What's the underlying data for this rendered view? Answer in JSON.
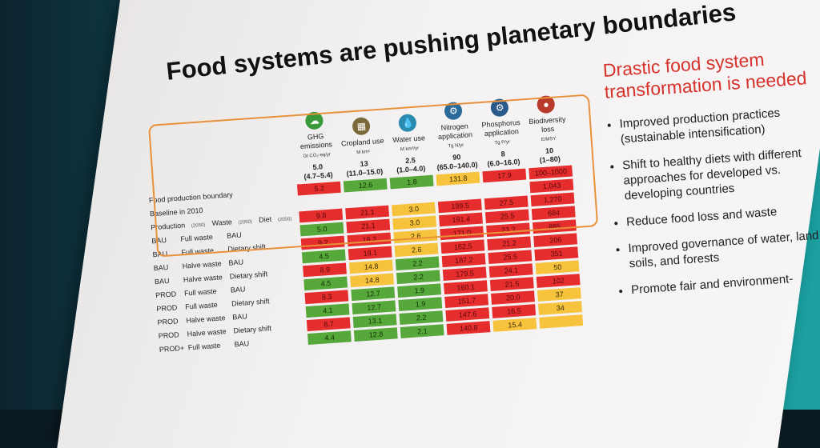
{
  "slide": {
    "title": "Food systems are pushing planetary boundaries",
    "columns": [
      {
        "label": "GHG emissions",
        "unit": "Gt CO₂-eq/yr",
        "boundary": "5.0",
        "range": "(4.7–5.4)",
        "icon": "ghg-icon",
        "color": "#3a9a3a"
      },
      {
        "label": "Cropland use",
        "unit": "M km²",
        "boundary": "13",
        "range": "(11.0–15.0)",
        "icon": "cropland-icon",
        "color": "#7a6a3a"
      },
      {
        "label": "Water use",
        "unit": "M km³/yr",
        "boundary": "2.5",
        "range": "(1.0–4.0)",
        "icon": "water-icon",
        "color": "#2a8ab0"
      },
      {
        "label": "Nitrogen application",
        "unit": "Tg N/yr",
        "boundary": "90",
        "range": "(65.0–140.0)",
        "icon": "nitrogen-icon",
        "color": "#2a6a9a"
      },
      {
        "label": "Phosphorus application",
        "unit": "Tg P/yr",
        "boundary": "8",
        "range": "(6.0–16.0)",
        "icon": "phosphorus-icon",
        "color": "#2a5a8a"
      },
      {
        "label": "Biodiversity loss",
        "unit": "E/MSY",
        "boundary": "10",
        "range": "(1–80)",
        "icon": "biodiversity-icon",
        "color": "#b83a2a"
      }
    ],
    "row_labels": {
      "boundary": "Food production boundary",
      "baseline": "Baseline in 2010",
      "h_production": "Production",
      "h_production_sub": "(2050)",
      "h_waste": "Waste",
      "h_waste_sub": "(2050)",
      "h_diet": "Diet",
      "h_diet_sub": "(2050)"
    },
    "baseline": [
      {
        "v": "5.2",
        "c": "red"
      },
      {
        "v": "12.6",
        "c": "green"
      },
      {
        "v": "1.8",
        "c": "green"
      },
      {
        "v": "131.8",
        "c": "yellow"
      },
      {
        "v": "17.9",
        "c": "red"
      },
      {
        "v": "100–1000",
        "c": "red"
      }
    ],
    "baseline_extra": {
      "v": "1,043",
      "c": "red"
    },
    "rows": [
      {
        "p": "",
        "w": "",
        "d": "",
        "cells": [
          {
            "v": "9.8",
            "c": "red"
          },
          {
            "v": "21.1",
            "c": "red"
          },
          {
            "v": "3.0",
            "c": "yellow"
          },
          {
            "v": "199.5",
            "c": "red"
          },
          {
            "v": "27.5",
            "c": "red"
          },
          {
            "v": "1,270",
            "c": "red"
          }
        ]
      },
      {
        "p": "BAU",
        "w": "Full waste",
        "d": "BAU",
        "cells": [
          {
            "v": "5.0",
            "c": "green"
          },
          {
            "v": "21.1",
            "c": "red"
          },
          {
            "v": "3.0",
            "c": "yellow"
          },
          {
            "v": "191.4",
            "c": "red"
          },
          {
            "v": "25.5",
            "c": "red"
          },
          {
            "v": "684",
            "c": "red"
          }
        ]
      },
      {
        "p": "BAU",
        "w": "Full waste",
        "d": "Dietary shift",
        "cells": [
          {
            "v": "9.2",
            "c": "red"
          },
          {
            "v": "18.2",
            "c": "red"
          },
          {
            "v": "2.6",
            "c": "yellow"
          },
          {
            "v": "171.0",
            "c": "red"
          },
          {
            "v": "23.2",
            "c": "red"
          },
          {
            "v": "885",
            "c": "red"
          }
        ]
      },
      {
        "p": "BAU",
        "w": "Halve waste",
        "d": "BAU",
        "cells": [
          {
            "v": "4.5",
            "c": "green"
          },
          {
            "v": "18.1",
            "c": "red"
          },
          {
            "v": "2.6",
            "c": "yellow"
          },
          {
            "v": "162.5",
            "c": "red"
          },
          {
            "v": "21.2",
            "c": "red"
          },
          {
            "v": "206",
            "c": "red"
          }
        ]
      },
      {
        "p": "BAU",
        "w": "Halve waste",
        "d": "Dietary shift",
        "cells": [
          {
            "v": "8.9",
            "c": "red"
          },
          {
            "v": "14.8",
            "c": "yellow"
          },
          {
            "v": "2.2",
            "c": "green"
          },
          {
            "v": "187.2",
            "c": "red"
          },
          {
            "v": "25.5",
            "c": "red"
          },
          {
            "v": "351",
            "c": "red"
          }
        ]
      },
      {
        "p": "PROD",
        "w": "Full waste",
        "d": "BAU",
        "cells": [
          {
            "v": "4.5",
            "c": "green"
          },
          {
            "v": "14.8",
            "c": "yellow"
          },
          {
            "v": "2.2",
            "c": "green"
          },
          {
            "v": "179.5",
            "c": "red"
          },
          {
            "v": "24.1",
            "c": "red"
          },
          {
            "v": "50",
            "c": "yellow"
          }
        ]
      },
      {
        "p": "PROD",
        "w": "Full waste",
        "d": "Dietary shift",
        "cells": [
          {
            "v": "8.3",
            "c": "red"
          },
          {
            "v": "12.7",
            "c": "green"
          },
          {
            "v": "1.9",
            "c": "green"
          },
          {
            "v": "160.1",
            "c": "red"
          },
          {
            "v": "21.5",
            "c": "red"
          },
          {
            "v": "102",
            "c": "red"
          }
        ]
      },
      {
        "p": "PROD",
        "w": "Halve waste",
        "d": "BAU",
        "cells": [
          {
            "v": "4.1",
            "c": "green"
          },
          {
            "v": "12.7",
            "c": "green"
          },
          {
            "v": "1.9",
            "c": "green"
          },
          {
            "v": "151.7",
            "c": "red"
          },
          {
            "v": "20.0",
            "c": "red"
          },
          {
            "v": "37",
            "c": "yellow"
          }
        ]
      },
      {
        "p": "PROD",
        "w": "Halve waste",
        "d": "Dietary shift",
        "cells": [
          {
            "v": "8.7",
            "c": "red"
          },
          {
            "v": "13.1",
            "c": "green"
          },
          {
            "v": "2.2",
            "c": "green"
          },
          {
            "v": "147.6",
            "c": "red"
          },
          {
            "v": "16.5",
            "c": "red"
          },
          {
            "v": "34",
            "c": "yellow"
          }
        ]
      },
      {
        "p": "PROD+",
        "w": "Full waste",
        "d": "BAU",
        "cells": [
          {
            "v": "4.4",
            "c": "green"
          },
          {
            "v": "12.8",
            "c": "green"
          },
          {
            "v": "2.1",
            "c": "green"
          },
          {
            "v": "140.8",
            "c": "red"
          },
          {
            "v": "15.4",
            "c": "yellow"
          },
          {
            "v": "",
            "c": "yellow"
          }
        ]
      }
    ],
    "right_panel": {
      "heading": "Drastic food system transformation is needed",
      "bullets": [
        "Improved production practices (sustainable intensification)",
        "Shift to healthy diets with different approaches for developed vs. developing countries",
        "Reduce food loss and waste",
        "Improved governance of water, land, soils, and forests",
        "Promote fair and environment-"
      ]
    }
  }
}
